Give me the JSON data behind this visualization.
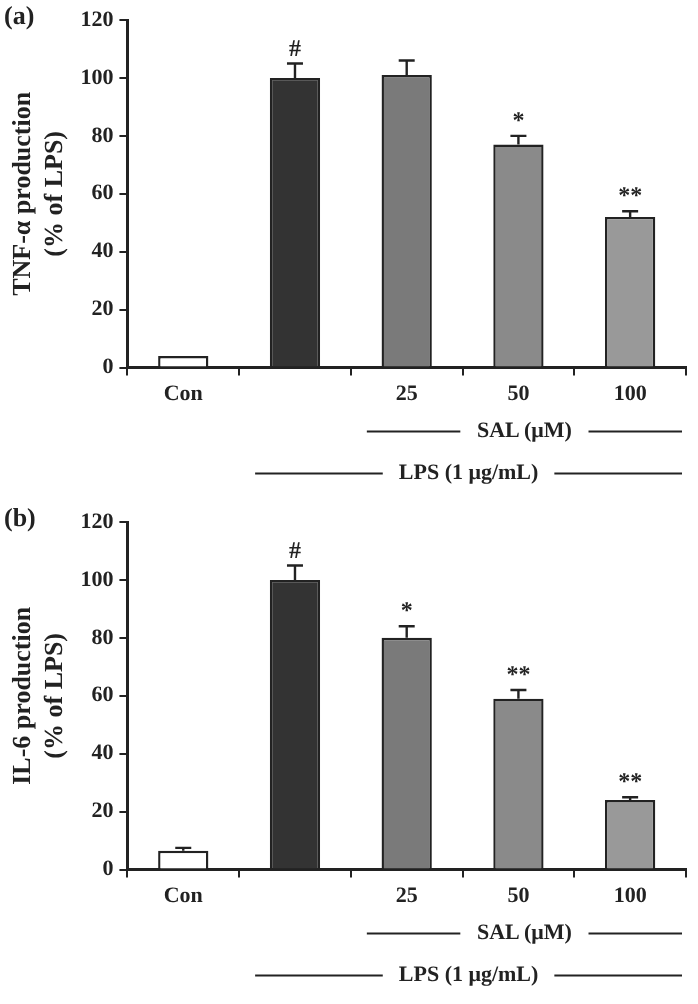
{
  "chart_data": [
    {
      "type": "bar",
      "title": "(a)",
      "ylabel": "TNF-α production\n(% of LPS)",
      "categories": [
        "Con",
        null,
        "25",
        "50",
        "100"
      ],
      "values": [
        4,
        100,
        101,
        77,
        52
      ],
      "errors": [
        0,
        5,
        5,
        3,
        2
      ],
      "value_labels": [
        null,
        "#",
        null,
        "*",
        "**"
      ],
      "colors": [
        "#ffffff",
        "#333333",
        "#7a7a7a",
        "#8a8a8a",
        "#999999"
      ],
      "ylim": [
        0,
        120
      ],
      "yticks": [
        0,
        20,
        40,
        60,
        80,
        100,
        120
      ],
      "grid": false,
      "legend": false,
      "annotations": [
        "SAL (μM)",
        "LPS (1 μg/mL)"
      ]
    },
    {
      "type": "bar",
      "title": "(b)",
      "ylabel": "IL-6 production\n(% of LPS)",
      "categories": [
        "Con",
        null,
        "25",
        "50",
        "100"
      ],
      "values": [
        6.5,
        100,
        80,
        59,
        24
      ],
      "errors": [
        1,
        5,
        4,
        3,
        1
      ],
      "value_labels": [
        null,
        "#",
        "*",
        "**",
        "**"
      ],
      "colors": [
        "#ffffff",
        "#333333",
        "#7a7a7a",
        "#8a8a8a",
        "#999999"
      ],
      "ylim": [
        0,
        120
      ],
      "yticks": [
        0,
        20,
        40,
        60,
        80,
        100,
        120
      ],
      "grid": false,
      "legend": false,
      "annotations": [
        "SAL (μM)",
        "LPS (1 μg/mL)"
      ]
    }
  ]
}
